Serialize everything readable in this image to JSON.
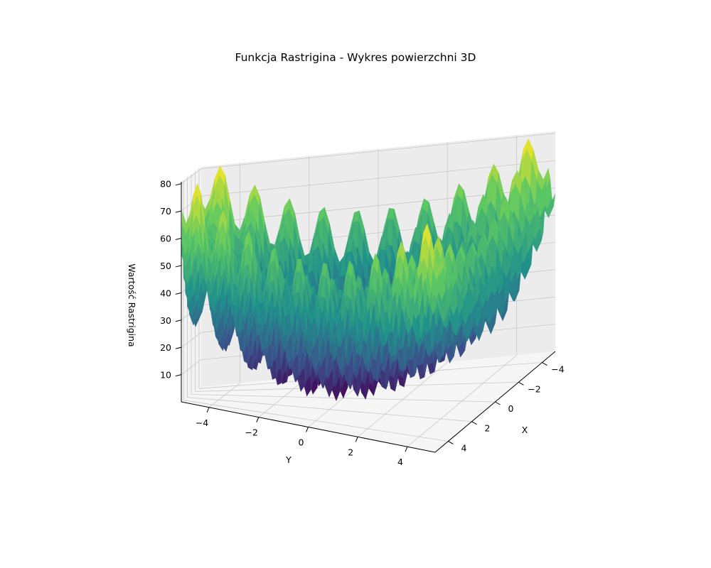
{
  "chart_data": {
    "type": "surface3d",
    "title": "Funkcja Rastrigina - Wykres powierzchni 3D",
    "function": "Rastrigin: 20 + x^2 - 10cos(2πx) + y^2 - 10cos(2πy)",
    "colormap": "viridis",
    "xlabel": "X",
    "ylabel": "Y",
    "zlabel": "Wartość Rastrigina",
    "xlim": [
      -5.12,
      5.12
    ],
    "ylim": [
      -5.12,
      5.12
    ],
    "zlim": [
      0,
      80.7
    ],
    "x_ticks": [
      "−4",
      "−2",
      "0",
      "2",
      "4"
    ],
    "y_ticks": [
      "−4",
      "−2",
      "0",
      "2",
      "4"
    ],
    "z_ticks": [
      "10",
      "20",
      "30",
      "40",
      "50",
      "60",
      "70",
      "80"
    ],
    "grid": true,
    "colors": [
      "#440154",
      "#3b528b",
      "#21918c",
      "#5ec962",
      "#fde725"
    ]
  }
}
